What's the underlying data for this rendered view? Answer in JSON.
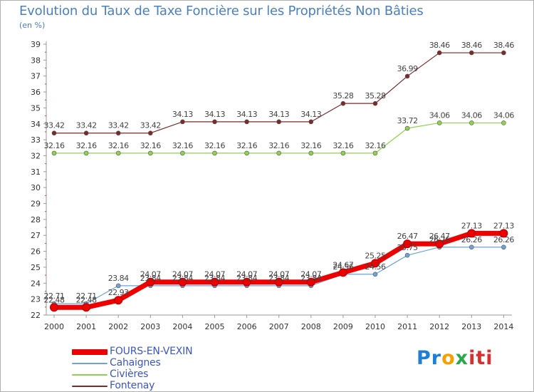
{
  "header": {
    "title": "Evolution du Taux de Taxe Foncière sur les Propriétés Non Bâties",
    "unit": "(en %)"
  },
  "chart_data": {
    "type": "line",
    "title": "Evolution du Taux de Taxe Foncière sur les Propriétés Non Bâties",
    "ylabel": "(en %)",
    "xlabel": "",
    "ylim": [
      22,
      39
    ],
    "yticks": [
      "22",
      "23",
      "24",
      "25",
      "26",
      "27",
      "28",
      "29",
      "30",
      "31",
      "32",
      "33",
      "34",
      "35",
      "36",
      "37",
      "38",
      "39"
    ],
    "categories": [
      "2000",
      "2001",
      "2002",
      "2003",
      "2004",
      "2005",
      "2006",
      "2007",
      "2008",
      "2009",
      "2010",
      "2011",
      "2012",
      "2013",
      "2014"
    ],
    "grid": false,
    "legend_position": "bottom-left",
    "series": [
      {
        "name": "Fontenay",
        "color": "#7b2a2a",
        "values": [
          33.42,
          33.42,
          33.42,
          33.42,
          34.13,
          34.13,
          34.13,
          34.13,
          34.13,
          35.28,
          35.28,
          36.99,
          38.46,
          38.46,
          38.46
        ],
        "labels": [
          "33.42",
          "33.42",
          "33.42",
          "33.42",
          "34.13",
          "34.13",
          "34.13",
          "34.13",
          "34.13",
          "35.28",
          "35.28",
          "36.99",
          "38.46",
          "38.46",
          "38.46"
        ]
      },
      {
        "name": "Civières",
        "color": "#8ed44a",
        "values": [
          32.16,
          32.16,
          32.16,
          32.16,
          32.16,
          32.16,
          32.16,
          32.16,
          32.16,
          32.16,
          32.16,
          33.72,
          34.06,
          34.06,
          34.06
        ],
        "labels": [
          "32.16",
          "32.16",
          "32.16",
          "32.16",
          "32.16",
          "32.16",
          "32.16",
          "32.16",
          "32.16",
          "32.16",
          "32.16",
          "33.72",
          "34.06",
          "34.06",
          "34.06"
        ]
      },
      {
        "name": "Cahaignes",
        "color": "#6fa3d6",
        "values": [
          22.71,
          22.71,
          23.84,
          23.84,
          23.84,
          23.84,
          23.84,
          23.84,
          23.84,
          24.56,
          24.56,
          25.75,
          26.26,
          26.26,
          26.26
        ],
        "labels": [
          "22.71",
          "22.71",
          "23.84",
          "23.84",
          "23.84",
          "23.84",
          "23.84",
          "23.84",
          "23.84",
          "24.56",
          "24.56",
          "25.75",
          "26.26",
          "26.26",
          "26.26"
        ]
      },
      {
        "name": "FOURS-EN-VEXIN",
        "color": "#ee0000",
        "values": [
          22.48,
          22.48,
          22.93,
          24.07,
          24.07,
          24.07,
          24.07,
          24.07,
          24.07,
          24.67,
          25.25,
          26.47,
          26.47,
          27.13,
          27.13
        ],
        "labels": [
          "22.48",
          "22.48",
          "22.93",
          "24.07",
          "24.07",
          "24.07",
          "24.07",
          "24.07",
          "24.07",
          "24.67",
          "25.25",
          "26.47",
          "26.47",
          "27.13",
          "27.13"
        ]
      }
    ]
  },
  "legend": {
    "items": [
      {
        "label": "FOURS-EN-VEXIN",
        "color": "#ee0000",
        "text_color": "#3b56c8"
      },
      {
        "label": "Cahaignes",
        "color": "#6fa3d6",
        "text_color": "#3b56c8"
      },
      {
        "label": "Civières",
        "color": "#8ed44a",
        "text_color": "#3b56c8"
      },
      {
        "label": "Fontenay",
        "color": "#7b2a2a",
        "text_color": "#3b56c8"
      }
    ]
  },
  "logo": {
    "part1": "Pr",
    "part2": "o",
    "part3": "x",
    "part4": "iti"
  }
}
